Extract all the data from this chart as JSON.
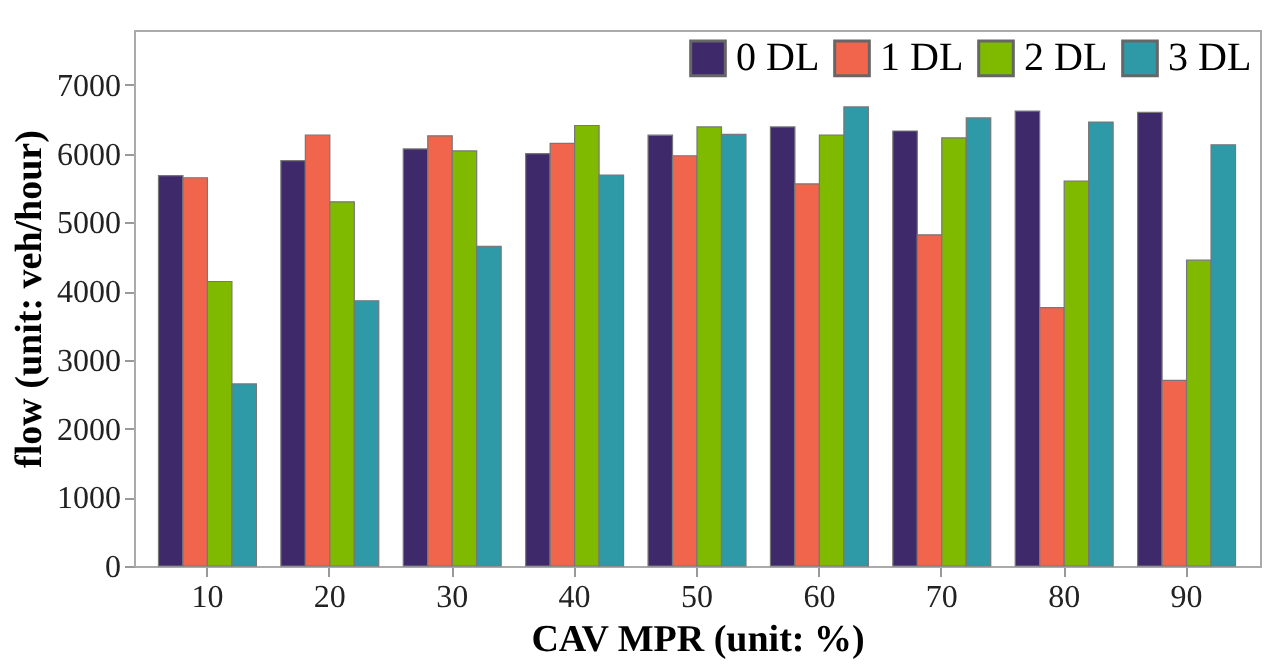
{
  "chart_data": {
    "type": "bar",
    "xlabel": "CAV MPR (unit: %)",
    "ylabel": "flow (unit: veh/hour)",
    "categories": [
      "10",
      "20",
      "30",
      "40",
      "50",
      "60",
      "70",
      "80",
      "90"
    ],
    "series": [
      {
        "name": "0 DL",
        "color": "#3e2a6b",
        "values": [
          5680,
          5900,
          6070,
          6000,
          6270,
          6390,
          6330,
          6620,
          6600
        ]
      },
      {
        "name": "1 DL",
        "color": "#f0654b",
        "values": [
          5650,
          6270,
          6260,
          6150,
          5970,
          5560,
          4820,
          3760,
          2700
        ]
      },
      {
        "name": "2 DL",
        "color": "#7fba00",
        "values": [
          4140,
          5300,
          6040,
          6410,
          6390,
          6270,
          6230,
          5600,
          4450
        ]
      },
      {
        "name": "3 DL",
        "color": "#2e9aa7",
        "values": [
          2650,
          3860,
          4650,
          5690,
          6280,
          6680,
          6520,
          6460,
          6130
        ]
      }
    ],
    "ylim": [
      0,
      7800
    ],
    "yticks": [
      0,
      1000,
      2000,
      3000,
      4000,
      5000,
      6000,
      7000
    ],
    "grid": false,
    "legend": "top right"
  }
}
